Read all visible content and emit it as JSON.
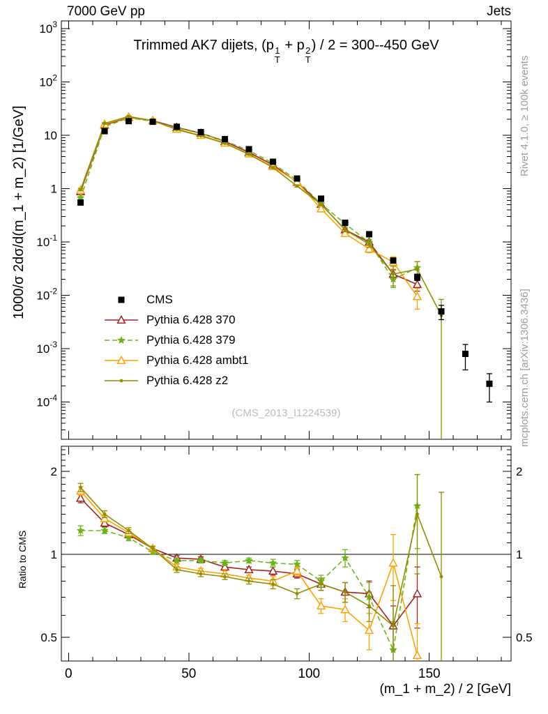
{
  "header": {
    "left": "7000 GeV pp",
    "right": "Jets"
  },
  "side_notes": {
    "top": "Rivet 4.1.0, ≥ 100k events",
    "bottom": "mcplots.cern.ch [arXiv:1306.3436]"
  },
  "watermark": "(CMS_2013_I1224539)",
  "xaxis": {
    "label": "(m_1 + m_2) / 2 [GeV]",
    "ticks": [
      0,
      50,
      100,
      150
    ],
    "minor_step": 10,
    "lim": [
      -3,
      184
    ]
  },
  "chart_data": [
    {
      "id": "main",
      "type": "line",
      "title": "Trimmed AK7 dijets, (p_T^1 + p_T^2) / 2 = 300--450 GeV",
      "title_segments": [
        {
          "text": "Trimmed AK7 dijets, (p"
        },
        {
          "sup": "1",
          "sub": "T"
        },
        {
          "text": " + p"
        },
        {
          "sup": "2",
          "sub": "T"
        },
        {
          "text": ") / 2 = 300--450 GeV"
        }
      ],
      "ylabel": "1000/σ  2dσ/d(m_1 + m_2)  [1/GeV]",
      "yscale": "log",
      "ylim": [
        2e-05,
        1400
      ],
      "yticks": [
        {
          "v": 1000,
          "t": "10",
          "s": "3"
        },
        {
          "v": 100,
          "t": "10",
          "s": "2"
        },
        {
          "v": 10,
          "t": "10",
          "s": ""
        },
        {
          "v": 1,
          "t": "1",
          "s": ""
        },
        {
          "v": 0.1,
          "t": "10",
          "s": "-1"
        },
        {
          "v": 0.01,
          "t": "10",
          "s": "-2"
        },
        {
          "v": 0.001,
          "t": "10",
          "s": "-3"
        },
        {
          "v": 0.0001,
          "t": "10",
          "s": "-4"
        }
      ],
      "series": [
        {
          "name": "CMS",
          "color": "#000000",
          "marker": "square",
          "line": "none",
          "x": [
            5,
            15,
            25,
            35,
            45,
            55,
            65,
            75,
            85,
            95,
            105,
            115,
            125,
            135,
            145,
            155,
            165,
            175
          ],
          "y": [
            0.55,
            12,
            18.5,
            18,
            14.5,
            11.5,
            8.5,
            5.5,
            3.2,
            1.55,
            0.65,
            0.23,
            0.14,
            0.045,
            0.022,
            0.005,
            0.0008,
            0.00022
          ],
          "err": [
            0.03,
            0.5,
            0.6,
            0.5,
            0.4,
            0.35,
            0.25,
            0.18,
            0.12,
            0.07,
            0.035,
            0.015,
            0.01,
            0.005,
            0.003,
            0.0015,
            0.0004,
            0.00012
          ]
        },
        {
          "name": "Pythia 6.428 370",
          "color": "#a32020",
          "marker": "triangle-open",
          "line": "solid",
          "x": [
            5,
            15,
            25,
            35,
            45,
            55,
            65,
            75,
            85,
            95,
            105,
            115,
            125,
            135,
            145
          ],
          "y": [
            0.88,
            15.6,
            21.8,
            18.9,
            14.1,
            11.0,
            7.7,
            4.8,
            2.8,
            1.32,
            0.51,
            0.17,
            0.1,
            0.025,
            0.016
          ],
          "err": [
            0.05,
            0.5,
            0.6,
            0.4,
            0.3,
            0.25,
            0.2,
            0.12,
            0.09,
            0.05,
            0.03,
            0.015,
            0.012,
            0.005,
            0.004
          ]
        },
        {
          "name": "Pythia 6.428 379",
          "color": "#6cb518",
          "marker": "star",
          "line": "dashed",
          "x": [
            5,
            15,
            25,
            35,
            45,
            55,
            65,
            75,
            85,
            95,
            105,
            115,
            125,
            135,
            145
          ],
          "y": [
            0.67,
            14.6,
            21.3,
            18.4,
            13.8,
            10.9,
            7.9,
            5.2,
            3.0,
            1.43,
            0.52,
            0.22,
            0.098,
            0.02,
            0.033
          ],
          "err": [
            0.04,
            0.4,
            0.5,
            0.4,
            0.3,
            0.25,
            0.2,
            0.12,
            0.09,
            0.05,
            0.03,
            0.017,
            0.013,
            0.006,
            0.01
          ]
        },
        {
          "name": "Pythia 6.428 ambt1",
          "color": "#ffa200",
          "marker": "triangle-open",
          "line": "solid",
          "x": [
            5,
            15,
            25,
            35,
            45,
            55,
            65,
            75,
            85,
            95,
            105,
            115,
            125,
            135,
            145
          ],
          "y": [
            0.94,
            16.2,
            22.2,
            18.9,
            13.1,
            10.0,
            7.2,
            4.5,
            2.6,
            1.35,
            0.42,
            0.145,
            0.074,
            0.042,
            0.0095
          ],
          "err": [
            0.05,
            0.5,
            0.6,
            0.4,
            0.3,
            0.25,
            0.2,
            0.12,
            0.09,
            0.05,
            0.03,
            0.014,
            0.011,
            0.011,
            0.004
          ]
        },
        {
          "name": "Pythia 6.428 z2",
          "color": "#8f8f00",
          "marker": "dot",
          "line": "solid",
          "x": [
            5,
            15,
            25,
            35,
            45,
            55,
            65,
            75,
            85,
            95,
            105,
            115,
            125,
            135,
            145,
            155
          ],
          "y": [
            0.96,
            16.8,
            22.6,
            18.9,
            12.8,
            9.8,
            7.1,
            4.4,
            2.5,
            1.12,
            0.51,
            0.17,
            0.091,
            0.025,
            0.031,
            0.0042
          ],
          "err": [
            0.05,
            0.5,
            0.6,
            0.4,
            0.3,
            0.25,
            0.2,
            0.12,
            0.09,
            0.05,
            0.03,
            0.015,
            0.012,
            0.01,
            0.012,
            0.0042
          ]
        }
      ]
    },
    {
      "id": "ratio",
      "type": "line",
      "ylabel": "Ratio to CMS",
      "yscale": "log",
      "ylim": [
        0.41,
        2.47
      ],
      "ref_line": 1,
      "yticks": [
        {
          "v": 2,
          "label": "2"
        },
        {
          "v": 1,
          "label": "1"
        },
        {
          "v": 0.5,
          "label": "0.5"
        }
      ],
      "series": [
        {
          "name": "Pythia 6.428 370",
          "color": "#a32020",
          "marker": "triangle-open",
          "line": "solid",
          "x": [
            5,
            15,
            25,
            35,
            45,
            55,
            65,
            75,
            85,
            95,
            105,
            115,
            125,
            135,
            145
          ],
          "y": [
            1.6,
            1.3,
            1.18,
            1.05,
            0.97,
            0.96,
            0.9,
            0.88,
            0.87,
            0.85,
            0.78,
            0.73,
            0.72,
            0.55,
            0.72
          ],
          "err": [
            0.06,
            0.04,
            0.03,
            0.02,
            0.02,
            0.02,
            0.02,
            0.02,
            0.03,
            0.03,
            0.04,
            0.06,
            0.08,
            0.1,
            0.18
          ]
        },
        {
          "name": "Pythia 6.428 379",
          "color": "#6cb518",
          "marker": "star",
          "line": "dashed",
          "x": [
            5,
            15,
            25,
            35,
            45,
            55,
            65,
            75,
            85,
            95,
            105,
            115,
            125,
            135,
            145
          ],
          "y": [
            1.22,
            1.22,
            1.15,
            1.02,
            0.95,
            0.95,
            0.93,
            0.95,
            0.93,
            0.92,
            0.8,
            0.97,
            0.7,
            0.45,
            1.5
          ],
          "err": [
            0.05,
            0.03,
            0.03,
            0.02,
            0.02,
            0.02,
            0.02,
            0.02,
            0.03,
            0.03,
            0.04,
            0.07,
            0.09,
            0.12,
            0.45
          ]
        },
        {
          "name": "Pythia 6.428 ambt1",
          "color": "#ffa200",
          "marker": "triangle-open",
          "line": "solid",
          "x": [
            5,
            15,
            25,
            35,
            45,
            55,
            65,
            75,
            85,
            95,
            105,
            115,
            125,
            135,
            145
          ],
          "y": [
            1.7,
            1.35,
            1.2,
            1.05,
            0.9,
            0.87,
            0.85,
            0.82,
            0.8,
            0.87,
            0.65,
            0.63,
            0.53,
            0.93,
            0.43
          ],
          "err": [
            0.06,
            0.04,
            0.03,
            0.02,
            0.02,
            0.02,
            0.02,
            0.02,
            0.03,
            0.03,
            0.04,
            0.06,
            0.08,
            0.25,
            0.13
          ]
        },
        {
          "name": "Pythia 6.428 z2",
          "color": "#8f8f00",
          "marker": "dot",
          "line": "solid",
          "x": [
            5,
            15,
            25,
            35,
            45,
            55,
            65,
            75,
            85,
            95,
            105,
            115,
            125,
            135,
            145,
            155
          ],
          "y": [
            1.75,
            1.4,
            1.22,
            1.05,
            0.88,
            0.85,
            0.83,
            0.8,
            0.78,
            0.72,
            0.78,
            0.73,
            0.65,
            0.55,
            1.4,
            0.83
          ],
          "err": [
            0.06,
            0.04,
            0.03,
            0.02,
            0.02,
            0.02,
            0.02,
            0.02,
            0.03,
            0.03,
            0.04,
            0.06,
            0.08,
            0.22,
            0.55,
            0.85
          ]
        }
      ]
    }
  ]
}
